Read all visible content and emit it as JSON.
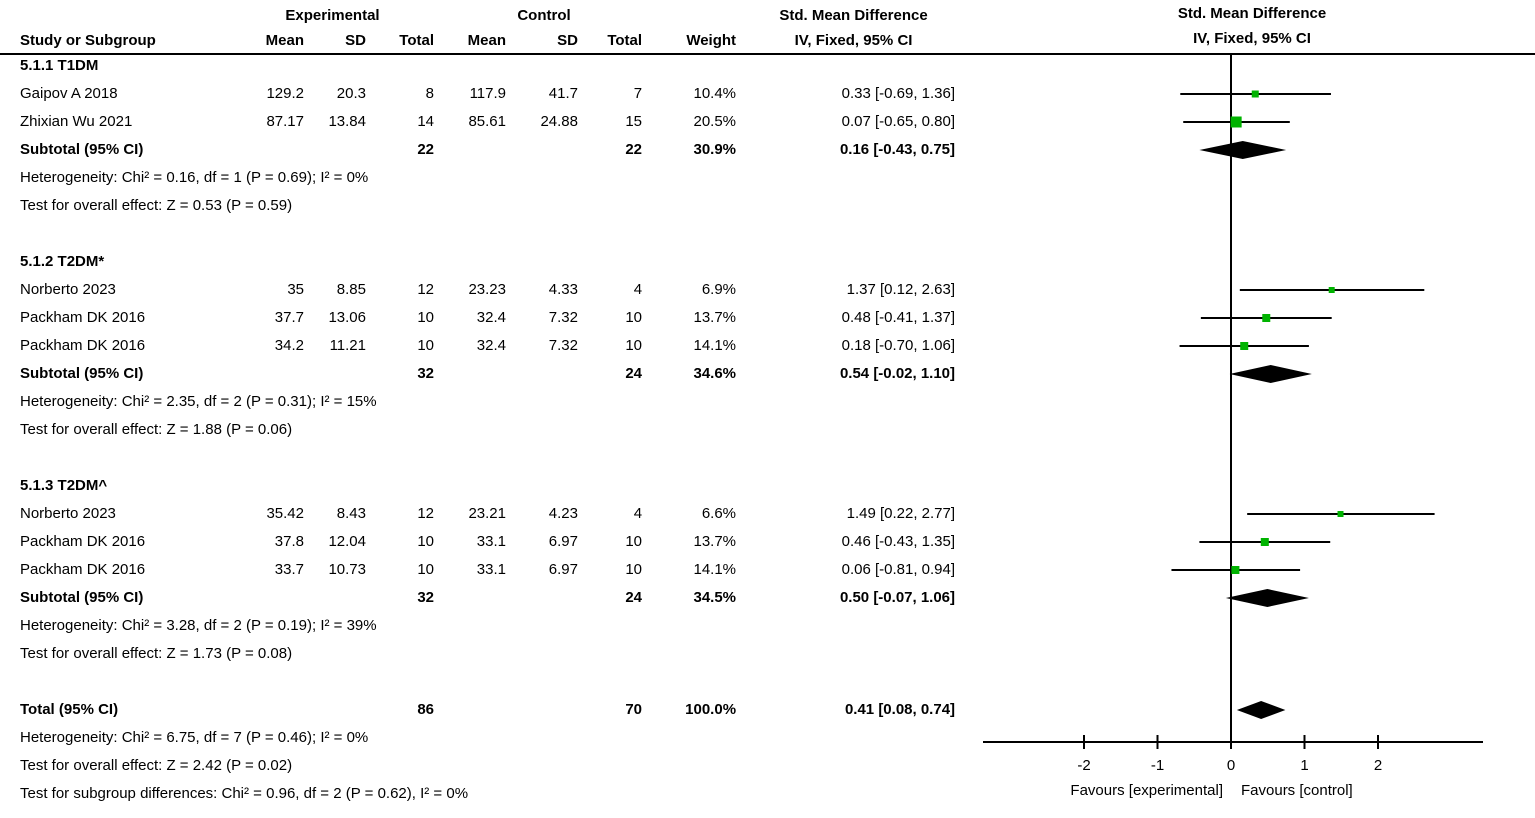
{
  "header": {
    "exp": "Experimental",
    "ctl": "Control",
    "smd": "Std. Mean Difference",
    "study": "Study or Subgroup",
    "mean": "Mean",
    "sd": "SD",
    "total": "Total",
    "weight": "Weight",
    "ci": "IV, Fixed, 95% CI"
  },
  "plot_header": {
    "line1": "Std. Mean Difference",
    "line2": "IV, Fixed, 95% CI"
  },
  "sections": [
    {
      "label": "5.1.1 T1DM",
      "studies": [
        {
          "study": "Gaipov A 2018",
          "mean1": "129.2",
          "sd1": "20.3",
          "total1": "8",
          "mean2": "117.9",
          "sd2": "41.7",
          "total2": "7",
          "weight": "10.4%",
          "ci": "0.33 [-0.69, 1.36]",
          "smd": 0.33,
          "lo": -0.69,
          "hi": 1.36,
          "weight_num": 10.4
        },
        {
          "study": "Zhixian Wu 2021",
          "mean1": "87.17",
          "sd1": "13.84",
          "total1": "14",
          "mean2": "85.61",
          "sd2": "24.88",
          "total2": "15",
          "weight": "20.5%",
          "ci": "0.07 [-0.65, 0.80]",
          "smd": 0.07,
          "lo": -0.65,
          "hi": 0.8,
          "weight_num": 20.5
        }
      ],
      "subtotal": {
        "label": "Subtotal (95% CI)",
        "total1": "22",
        "total2": "22",
        "weight": "30.9%",
        "ci": "0.16 [-0.43, 0.75]",
        "smd": 0.16,
        "lo": -0.43,
        "hi": 0.75
      },
      "heterogeneity": "Heterogeneity: Chi² = 0.16, df = 1 (P = 0.69); I² = 0%",
      "overall_effect": "Test for overall effect: Z = 0.53 (P = 0.59)"
    },
    {
      "label": "5.1.2 T2DM*",
      "studies": [
        {
          "study": "Norberto 2023",
          "mean1": "35",
          "sd1": "8.85",
          "total1": "12",
          "mean2": "23.23",
          "sd2": "4.33",
          "total2": "4",
          "weight": "6.9%",
          "ci": "1.37 [0.12, 2.63]",
          "smd": 1.37,
          "lo": 0.12,
          "hi": 2.63,
          "weight_num": 6.9
        },
        {
          "study": "Packham DK 2016",
          "mean1": "37.7",
          "sd1": "13.06",
          "total1": "10",
          "mean2": "32.4",
          "sd2": "7.32",
          "total2": "10",
          "weight": "13.7%",
          "ci": "0.48 [-0.41, 1.37]",
          "smd": 0.48,
          "lo": -0.41,
          "hi": 1.37,
          "weight_num": 13.7
        },
        {
          "study": "Packham DK 2016",
          "mean1": "34.2",
          "sd1": "11.21",
          "total1": "10",
          "mean2": "32.4",
          "sd2": "7.32",
          "total2": "10",
          "weight": "14.1%",
          "ci": "0.18 [-0.70, 1.06]",
          "smd": 0.18,
          "lo": -0.7,
          "hi": 1.06,
          "weight_num": 14.1
        }
      ],
      "subtotal": {
        "label": "Subtotal (95% CI)",
        "total1": "32",
        "total2": "24",
        "weight": "34.6%",
        "ci": "0.54 [-0.02, 1.10]",
        "smd": 0.54,
        "lo": -0.02,
        "hi": 1.1
      },
      "heterogeneity": "Heterogeneity: Chi² = 2.35, df = 2 (P = 0.31); I² = 15%",
      "overall_effect": "Test for overall effect: Z = 1.88 (P = 0.06)"
    },
    {
      "label": "5.1.3 T2DM^",
      "studies": [
        {
          "study": "Norberto 2023",
          "mean1": "35.42",
          "sd1": "8.43",
          "total1": "12",
          "mean2": "23.21",
          "sd2": "4.23",
          "total2": "4",
          "weight": "6.6%",
          "ci": "1.49 [0.22, 2.77]",
          "smd": 1.49,
          "lo": 0.22,
          "hi": 2.77,
          "weight_num": 6.6
        },
        {
          "study": "Packham DK 2016",
          "mean1": "37.8",
          "sd1": "12.04",
          "total1": "10",
          "mean2": "33.1",
          "sd2": "6.97",
          "total2": "10",
          "weight": "13.7%",
          "ci": "0.46 [-0.43, 1.35]",
          "smd": 0.46,
          "lo": -0.43,
          "hi": 1.35,
          "weight_num": 13.7
        },
        {
          "study": "Packham DK 2016",
          "mean1": "33.7",
          "sd1": "10.73",
          "total1": "10",
          "mean2": "33.1",
          "sd2": "6.97",
          "total2": "10",
          "weight": "14.1%",
          "ci": "0.06 [-0.81, 0.94]",
          "smd": 0.06,
          "lo": -0.81,
          "hi": 0.94,
          "weight_num": 14.1
        }
      ],
      "subtotal": {
        "label": "Subtotal (95% CI)",
        "total1": "32",
        "total2": "24",
        "weight": "34.5%",
        "ci": "0.50 [-0.07, 1.06]",
        "smd": 0.5,
        "lo": -0.07,
        "hi": 1.06
      },
      "heterogeneity": "Heterogeneity: Chi² = 3.28, df = 2 (P = 0.19); I² = 39%",
      "overall_effect": "Test for overall effect: Z = 1.73 (P = 0.08)"
    }
  ],
  "total": {
    "label": "Total (95% CI)",
    "total1": "86",
    "total2": "70",
    "weight": "100.0%",
    "ci": "0.41 [0.08, 0.74]",
    "smd": 0.41,
    "lo": 0.08,
    "hi": 0.74
  },
  "footer": {
    "heterogeneity": "Heterogeneity: Chi² = 6.75, df = 7 (P = 0.46); I² = 0%",
    "overall_effect": "Test for overall effect: Z = 2.42 (P = 0.02)",
    "subgroup_diff": "Test for subgroup differences: Chi² = 0.96, df = 2 (P = 0.62), I² = 0%"
  },
  "axis": {
    "ticks": [
      -2,
      -1,
      0,
      1,
      2
    ],
    "favours_left": "Favours [experimental]",
    "favours_right": "Favours [control]"
  },
  "colors": {
    "marker_green": "#00b300",
    "diamond_black": "#000000",
    "line_black": "#000000"
  },
  "chart_data": {
    "type": "scatter",
    "subtype": "forest_plot_fixed_effects",
    "effect_measure": "Std. Mean Difference, IV, Fixed, 95% CI",
    "xlim": [
      -3.4,
      3.4
    ],
    "x_ticks": [
      -2,
      -1,
      0,
      1,
      2
    ],
    "xlabel_left": "Favours [experimental]",
    "xlabel_right": "Favours [control]",
    "groups": [
      {
        "name": "5.1.1 T1DM",
        "studies": [
          {
            "label": "Gaipov A 2018",
            "smd": 0.33,
            "ci_low": -0.69,
            "ci_high": 1.36,
            "weight_pct": 10.4
          },
          {
            "label": "Zhixian Wu 2021",
            "smd": 0.07,
            "ci_low": -0.65,
            "ci_high": 0.8,
            "weight_pct": 20.5
          }
        ],
        "subtotal": {
          "smd": 0.16,
          "ci_low": -0.43,
          "ci_high": 0.75,
          "weight_pct": 30.9,
          "heterogeneity": "Chi² = 0.16, df = 1 (P = 0.69); I² = 0%",
          "z_test": "Z = 0.53 (P = 0.59)"
        }
      },
      {
        "name": "5.1.2 T2DM*",
        "studies": [
          {
            "label": "Norberto 2023",
            "smd": 1.37,
            "ci_low": 0.12,
            "ci_high": 2.63,
            "weight_pct": 6.9
          },
          {
            "label": "Packham DK 2016",
            "smd": 0.48,
            "ci_low": -0.41,
            "ci_high": 1.37,
            "weight_pct": 13.7
          },
          {
            "label": "Packham DK 2016",
            "smd": 0.18,
            "ci_low": -0.7,
            "ci_high": 1.06,
            "weight_pct": 14.1
          }
        ],
        "subtotal": {
          "smd": 0.54,
          "ci_low": -0.02,
          "ci_high": 1.1,
          "weight_pct": 34.6,
          "heterogeneity": "Chi² = 2.35, df = 2 (P = 0.31); I² = 15%",
          "z_test": "Z = 1.88 (P = 0.06)"
        }
      },
      {
        "name": "5.1.3 T2DM^",
        "studies": [
          {
            "label": "Norberto 2023",
            "smd": 1.49,
            "ci_low": 0.22,
            "ci_high": 2.77,
            "weight_pct": 6.6
          },
          {
            "label": "Packham DK 2016",
            "smd": 0.46,
            "ci_low": -0.43,
            "ci_high": 1.35,
            "weight_pct": 13.7
          },
          {
            "label": "Packham DK 2016",
            "smd": 0.06,
            "ci_low": -0.81,
            "ci_high": 0.94,
            "weight_pct": 14.1
          }
        ],
        "subtotal": {
          "smd": 0.5,
          "ci_low": -0.07,
          "ci_high": 1.06,
          "weight_pct": 34.5,
          "heterogeneity": "Chi² = 3.28, df = 2 (P = 0.19); I² = 39%",
          "z_test": "Z = 1.73 (P = 0.08)"
        }
      }
    ],
    "total": {
      "smd": 0.41,
      "ci_low": 0.08,
      "ci_high": 0.74,
      "weight_pct": 100.0,
      "heterogeneity": "Chi² = 6.75, df = 7 (P = 0.46); I² = 0%",
      "z_test": "Z = 2.42 (P = 0.02)",
      "subgroup_diff": "Chi² = 0.96, df = 2 (P = 0.62), I² = 0%"
    }
  }
}
